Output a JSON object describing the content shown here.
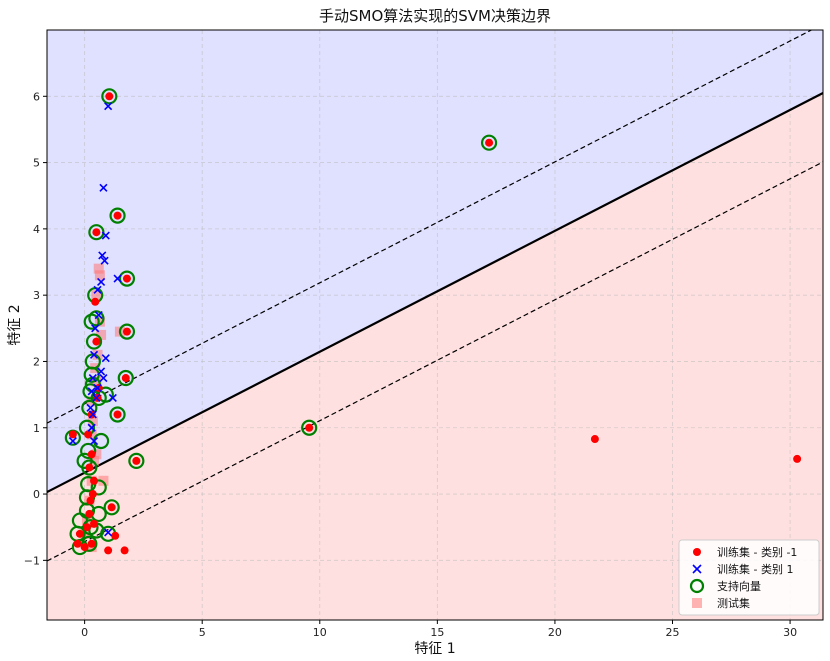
{
  "chart_data": {
    "type": "scatter",
    "title": "手动SMO算法实现的SVM决策边界",
    "xlabel": "特征 1",
    "ylabel": "特征 2",
    "xlim": [
      -1.6,
      31.4
    ],
    "ylim": [
      -1.9,
      7.0
    ],
    "xticks": [
      0,
      5,
      10,
      15,
      20,
      25,
      30
    ],
    "yticks": [
      -1,
      0,
      1,
      2,
      3,
      4,
      5,
      6
    ],
    "grid": true,
    "legend_position": "bottom-right",
    "region_colors": {
      "positive": "#e0e0ff",
      "negative": "#ffe0e0"
    },
    "decision_boundary": {
      "x": [
        -1.6,
        31.4
      ],
      "y": [
        0.03,
        6.05
      ]
    },
    "margin_upper": {
      "x": [
        -1.6,
        31.4
      ],
      "y": [
        1.07,
        7.09
      ]
    },
    "margin_lower": {
      "x": [
        -1.6,
        31.4
      ],
      "y": [
        -1.01,
        5.01
      ]
    },
    "series": [
      {
        "name": "训练集 - 类别 -1",
        "marker": "circle",
        "color": "#ff0000",
        "points": [
          [
            1.05,
            6.0
          ],
          [
            17.2,
            5.3
          ],
          [
            0.5,
            3.95
          ],
          [
            1.4,
            4.2
          ],
          [
            1.8,
            3.25
          ],
          [
            1.8,
            2.45
          ],
          [
            1.75,
            1.75
          ],
          [
            1.4,
            1.2
          ],
          [
            9.55,
            1.0
          ],
          [
            2.2,
            0.5
          ],
          [
            1.15,
            -0.2
          ],
          [
            21.7,
            0.83
          ],
          [
            30.3,
            0.53
          ],
          [
            1.7,
            -0.85
          ],
          [
            1.3,
            -0.63
          ],
          [
            1.0,
            -0.85
          ],
          [
            -0.5,
            0.9
          ],
          [
            0.3,
            0.6
          ],
          [
            0.4,
            0.2
          ],
          [
            0.2,
            -0.3
          ],
          [
            0.35,
            0.0
          ],
          [
            0.1,
            -0.5
          ],
          [
            0.3,
            -0.75
          ],
          [
            -0.2,
            -0.6
          ],
          [
            0.6,
            1.6
          ],
          [
            0.5,
            2.3
          ],
          [
            0.3,
            1.2
          ],
          [
            0.2,
            0.4
          ],
          [
            0.45,
            2.9
          ],
          [
            0.55,
            1.45
          ],
          [
            0.0,
            -0.8
          ],
          [
            -0.3,
            -0.75
          ],
          [
            0.15,
            0.9
          ],
          [
            0.25,
            -0.1
          ],
          [
            0.4,
            -0.45
          ]
        ]
      },
      {
        "name": "训练集 - 类别 1",
        "marker": "x",
        "color": "#0000ff",
        "points": [
          [
            1.0,
            5.85
          ],
          [
            0.8,
            4.62
          ],
          [
            0.9,
            3.9
          ],
          [
            0.75,
            3.6
          ],
          [
            0.85,
            3.52
          ],
          [
            1.4,
            3.25
          ],
          [
            0.7,
            3.2
          ],
          [
            0.55,
            3.08
          ],
          [
            0.6,
            2.7
          ],
          [
            0.45,
            2.5
          ],
          [
            0.9,
            2.05
          ],
          [
            0.7,
            1.85
          ],
          [
            0.8,
            1.75
          ],
          [
            0.55,
            1.6
          ],
          [
            0.5,
            1.45
          ],
          [
            1.2,
            1.45
          ],
          [
            1.0,
            -0.58
          ],
          [
            0.35,
            1.2
          ],
          [
            0.3,
            1.0
          ],
          [
            0.4,
            0.8
          ],
          [
            0.25,
            1.3
          ],
          [
            0.3,
            1.55
          ],
          [
            0.35,
            1.75
          ],
          [
            0.4,
            2.1
          ],
          [
            -0.5,
            0.8
          ]
        ]
      },
      {
        "name": "测试集",
        "marker": "square",
        "color": "#ff7777",
        "points": [
          [
            0.6,
            3.4
          ],
          [
            0.5,
            3.0
          ],
          [
            0.65,
            2.6
          ],
          [
            1.5,
            2.45
          ],
          [
            0.7,
            2.4
          ],
          [
            0.55,
            2.1
          ],
          [
            0.45,
            1.9
          ],
          [
            0.5,
            1.7
          ],
          [
            0.3,
            1.4
          ],
          [
            0.35,
            1.1
          ],
          [
            0.3,
            0.9
          ],
          [
            0.4,
            0.5
          ],
          [
            0.3,
            0.2
          ],
          [
            0.8,
            0.2
          ],
          [
            0.2,
            -0.1
          ],
          [
            0.1,
            -0.4
          ],
          [
            0.0,
            -0.6
          ],
          [
            0.3,
            -0.8
          ],
          [
            0.5,
            0.6
          ],
          [
            0.65,
            3.3
          ]
        ]
      }
    ],
    "support_vectors": {
      "name": "支持向量",
      "marker": "ring",
      "color": "#008000",
      "points": [
        [
          1.05,
          6.0
        ],
        [
          17.2,
          5.3
        ],
        [
          0.5,
          3.95
        ],
        [
          1.4,
          4.2
        ],
        [
          1.8,
          3.25
        ],
        [
          1.8,
          2.45
        ],
        [
          1.75,
          1.75
        ],
        [
          1.4,
          1.2
        ],
        [
          9.55,
          1.0
        ],
        [
          2.2,
          0.5
        ],
        [
          1.15,
          -0.2
        ],
        [
          0.45,
          3.0
        ],
        [
          0.5,
          2.65
        ],
        [
          0.4,
          2.3
        ],
        [
          0.35,
          2.0
        ],
        [
          0.3,
          1.8
        ],
        [
          0.25,
          1.55
        ],
        [
          0.2,
          1.3
        ],
        [
          0.1,
          1.0
        ],
        [
          -0.5,
          0.85
        ],
        [
          0.15,
          0.65
        ],
        [
          0.2,
          0.4
        ],
        [
          0.15,
          0.15
        ],
        [
          0.1,
          -0.05
        ],
        [
          0.1,
          -0.25
        ],
        [
          -0.2,
          -0.4
        ],
        [
          -0.3,
          -0.6
        ],
        [
          -0.2,
          -0.8
        ],
        [
          0.2,
          -0.75
        ],
        [
          0.5,
          -0.55
        ],
        [
          1.0,
          -0.6
        ],
        [
          0.6,
          1.45
        ],
        [
          0.9,
          1.5
        ],
        [
          0.7,
          0.8
        ],
        [
          0.6,
          0.1
        ],
        [
          0.6,
          -0.3
        ],
        [
          0.3,
          2.6
        ],
        [
          0.35,
          1.65
        ],
        [
          0.0,
          0.5
        ],
        [
          0.25,
          -0.5
        ]
      ]
    }
  }
}
